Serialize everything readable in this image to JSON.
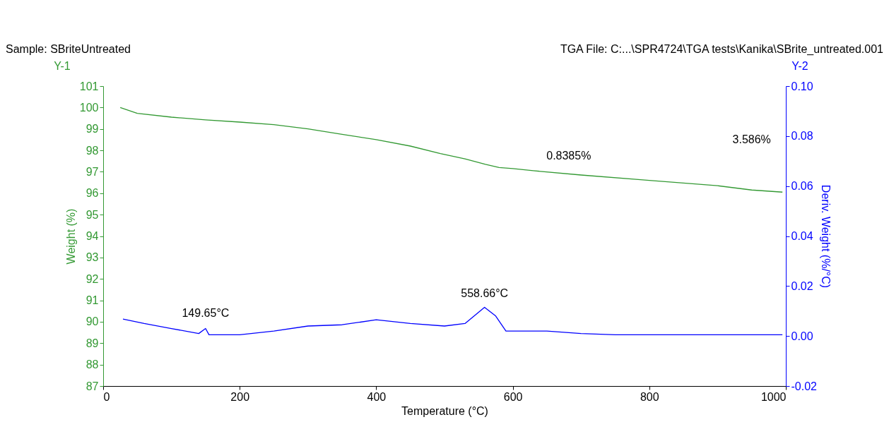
{
  "chart_data": {
    "type": "line",
    "xlabel": "Temperature (°C)",
    "ylabel": "Weight (%)",
    "y2label": "Deriv. Weight (%/°C)",
    "xlim": [
      0,
      1000
    ],
    "xticks": [
      0,
      200,
      400,
      600,
      800,
      1000
    ],
    "ylim": [
      87,
      101
    ],
    "yticks": [
      87,
      88,
      89,
      90,
      91,
      92,
      93,
      94,
      95,
      96,
      97,
      98,
      99,
      100,
      101
    ],
    "y2lim": [
      -0.02,
      0.1
    ],
    "y2ticks": [
      {
        "value": -0.02,
        "label": "-0.02"
      },
      {
        "value": 0,
        "label": "0.00"
      },
      {
        "value": 0.02,
        "label": "0.02"
      },
      {
        "value": 0.04,
        "label": "0.04"
      },
      {
        "value": 0.06,
        "label": "0.06"
      },
      {
        "value": 0.08,
        "label": "0.08"
      },
      {
        "value": 0.1,
        "label": "0.10"
      }
    ],
    "grid": false,
    "series": [
      {
        "color": "#339933",
        "x": [
          25,
          50,
          100,
          150,
          200,
          250,
          300,
          350,
          400,
          450,
          494,
          530,
          560,
          580,
          600,
          630,
          700,
          800,
          900,
          950,
          995
        ],
        "values": [
          100.0,
          99.73,
          99.55,
          99.42,
          99.32,
          99.2,
          99.0,
          98.75,
          98.5,
          98.2,
          97.85,
          97.6,
          97.35,
          97.2,
          97.15,
          97.05,
          96.85,
          96.6,
          96.35,
          96.15,
          96.05
        ]
      },
      {
        "color": "#0000ff",
        "axis": "y2",
        "x": [
          29,
          60,
          100,
          140,
          150,
          155,
          200,
          250,
          300,
          350,
          400,
          450,
          500,
          530,
          558.66,
          575,
          590,
          620,
          650,
          700,
          750,
          800,
          900,
          995
        ],
        "values": [
          0.0068,
          0.005,
          0.003,
          0.001,
          0.003,
          0.0005,
          0.0005,
          0.002,
          0.004,
          0.0045,
          0.0065,
          0.005,
          0.004,
          0.005,
          0.0115,
          0.008,
          0.002,
          0.002,
          0.002,
          0.001,
          0.0005,
          0.0005,
          0.0005,
          0.0005
        ]
      }
    ],
    "annotations": [
      "Sample: SBriteUntreated",
      "TGA File: C:...\\SPR4724\\TGA tests\\Kanika\\SBrite_untreated.001",
      "Y-1",
      "Y-2",
      "0.8385%",
      "3.586%",
      "149.65°C",
      "558.66°C"
    ]
  }
}
